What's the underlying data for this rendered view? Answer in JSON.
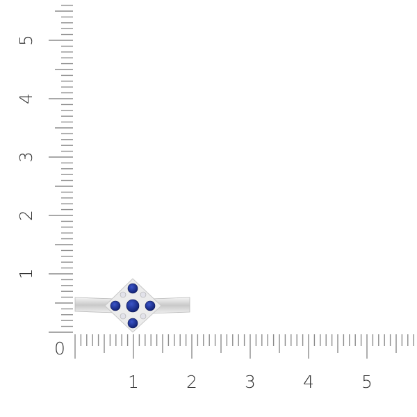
{
  "rulers": {
    "x_labels": [
      "0",
      "1",
      "2",
      "3",
      "4",
      "5"
    ],
    "y_labels": [
      "1",
      "2",
      "3",
      "4",
      "5"
    ],
    "origin_label": "0",
    "tick_color": "#8c8c8c",
    "label_color": "#333333"
  },
  "product": {
    "metal_color": "#d8d8d8",
    "stone_color": "#1a2f9a",
    "accent_stone_color": "#e8e8ee"
  }
}
